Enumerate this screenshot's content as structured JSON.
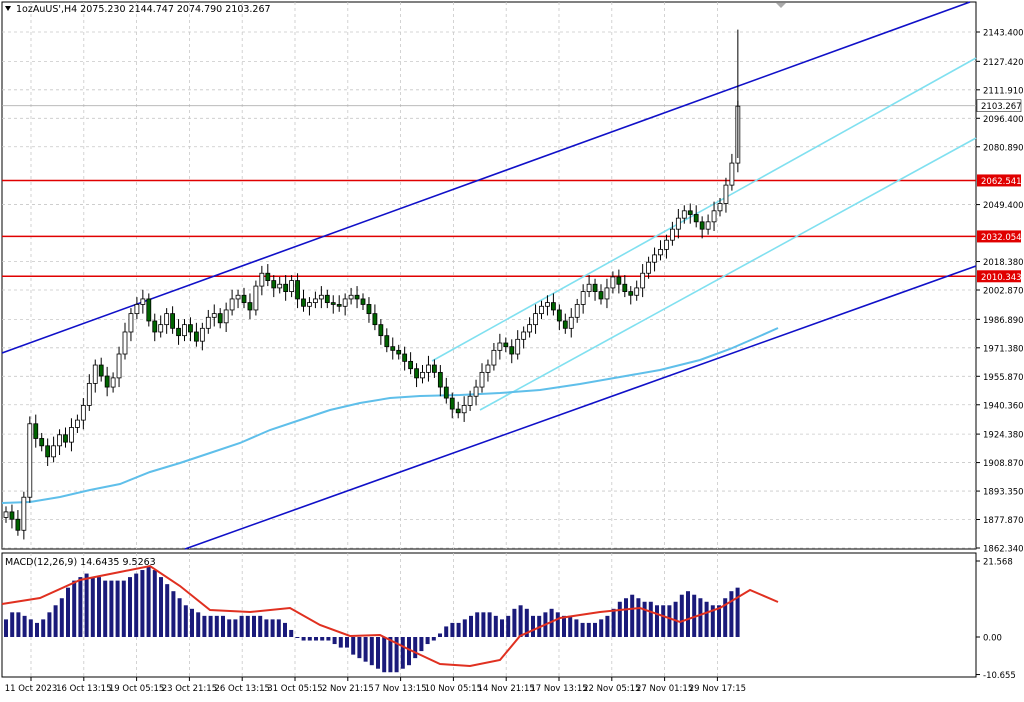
{
  "header": {
    "symbol_line": "1ozAuUS',H4  2075.230 2144.747 2074.790 2103.267"
  },
  "macd": {
    "label": "MACD(12,26,9) 14.6435 9.5263",
    "y_top": 21.568,
    "y_bottom": -10.655
  },
  "price_axis": {
    "ticks": [
      "2143.400",
      "2127.420",
      "2111.910",
      "2096.400",
      "2080.890",
      "2049.400",
      "2018.380",
      "2002.870",
      "1986.890",
      "1971.380",
      "1955.870",
      "1940.360",
      "1924.380",
      "1908.870",
      "1893.350",
      "1877.870",
      "1862.340"
    ],
    "current_price_label": "2103.267",
    "current_price_value": 2103.267
  },
  "macd_axis": {
    "ticks": [
      "21.568",
      "0.00",
      "-10.655"
    ]
  },
  "levels": [
    {
      "label": "2062.541",
      "value": 2062.541
    },
    {
      "label": "2032.054",
      "value": 2032.054
    },
    {
      "label": "2010.343",
      "value": 2010.343
    }
  ],
  "time_axis": {
    "labels": [
      "11 Oct 2023",
      "16 Oct 13:15",
      "19 Oct 05:15",
      "23 Oct 21:15",
      "26 Oct 13:15",
      "31 Oct 05:15",
      "2 Nov 21:15",
      "7 Nov 13:15",
      "10 Nov 05:15",
      "14 Nov 21:15",
      "17 Nov 13:15",
      "22 Nov 05:15",
      "27 Nov 01:15",
      "29 Nov 17:15"
    ]
  },
  "colors": {
    "bull": "#ffffff",
    "bear": "#006400",
    "channel_main": "#1010c8",
    "channel_inner": "#80e0f0",
    "ma": "#5fbfea",
    "level": "#e00000",
    "macd_hist": "#1a1a7a",
    "macd_signal": "#e03020",
    "grid": "#c8c8c8"
  }
}
